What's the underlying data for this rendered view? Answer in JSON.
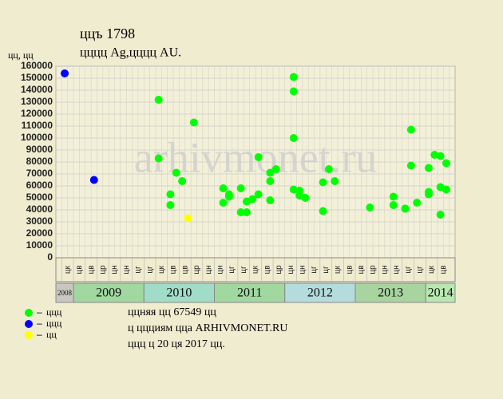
{
  "chart_data": {
    "type": "scatter",
    "title": "ццъ 1798",
    "subtitle": "цццц Ag,цццц AU.",
    "y_label": "цц, цц",
    "watermark": "arhivmonet.ru",
    "xlim": [
      "2008-10",
      "2014-05"
    ],
    "ylim": [
      0,
      160000
    ],
    "yticks": [
      0,
      10000,
      20000,
      30000,
      40000,
      50000,
      60000,
      70000,
      80000,
      90000,
      100000,
      110000,
      120000,
      130000,
      140000,
      150000,
      160000
    ],
    "grid": true,
    "month_labels": [
      "цк",
      "цв",
      "цв",
      "цр",
      "цн",
      "цн",
      "цг",
      "цг",
      "цк",
      "цв",
      "цв",
      "цр",
      "цн",
      "цн",
      "цг",
      "цг",
      "цк",
      "цв",
      "цр",
      "цн",
      "цн",
      "цг",
      "цг",
      "цк",
      "цв",
      "цв",
      "цр",
      "цн",
      "цн",
      "цг",
      "цг",
      "цк",
      "цв"
    ],
    "years": [
      "2008",
      "2009",
      "2010",
      "2011",
      "2012",
      "2013",
      "2014"
    ],
    "year_colors": [
      "#c8c8c0",
      "#a0d8a0",
      "#a0dcc8",
      "#a0d8a0",
      "#b4dcdc",
      "#a8d4a0",
      "#b8e8b0"
    ],
    "series": [
      {
        "name": "ццц",
        "color": "#00ff00",
        "x": [
          "2010-03",
          "2010-03",
          "2010-05",
          "2010-05",
          "2010-06",
          "2010-07",
          "2010-09",
          "2011-02",
          "2011-02",
          "2011-03",
          "2011-03",
          "2011-05",
          "2011-05",
          "2011-06",
          "2011-06",
          "2011-07",
          "2011-08",
          "2011-08",
          "2011-10",
          "2011-10",
          "2011-10",
          "2011-11",
          "2012-02",
          "2012-02",
          "2012-02",
          "2012-02",
          "2012-03",
          "2012-03",
          "2012-04",
          "2012-07",
          "2012-07",
          "2012-08",
          "2012-09",
          "2013-03",
          "2013-07",
          "2013-07",
          "2013-09",
          "2013-09",
          "2013-10",
          "2013-10",
          "2013-11",
          "2014-01",
          "2014-01",
          "2014-01",
          "2014-02",
          "2014-03",
          "2014-03",
          "2014-03",
          "2014-04",
          "2014-04"
        ],
        "values": [
          132000,
          83000,
          44000,
          53000,
          71000,
          64000,
          113000,
          46000,
          58000,
          53000,
          51000,
          58000,
          38000,
          38000,
          47000,
          49000,
          84000,
          53000,
          71000,
          64000,
          48000,
          74000,
          139000,
          100000,
          57000,
          151000,
          52000,
          56000,
          50000,
          63000,
          39000,
          74000,
          64000,
          42000,
          44000,
          51000,
          41000,
          41000,
          77000,
          107000,
          46000,
          53000,
          55000,
          75000,
          86000,
          85000,
          59000,
          36000,
          79000,
          57000
        ]
      },
      {
        "name": "ццц",
        "color": "#0000ff",
        "x": [
          "2008-11",
          "2009-04"
        ],
        "values": [
          154000,
          65000
        ]
      },
      {
        "name": "цц",
        "color": "#ffff00",
        "x": [
          "2010-08"
        ],
        "values": [
          33000
        ]
      }
    ],
    "notes": [
      "ццняя цц 67549 цц",
      "ц ццциям цца ARHIVMONET.RU",
      "ццц ц 20 ця 2017 цц."
    ]
  }
}
